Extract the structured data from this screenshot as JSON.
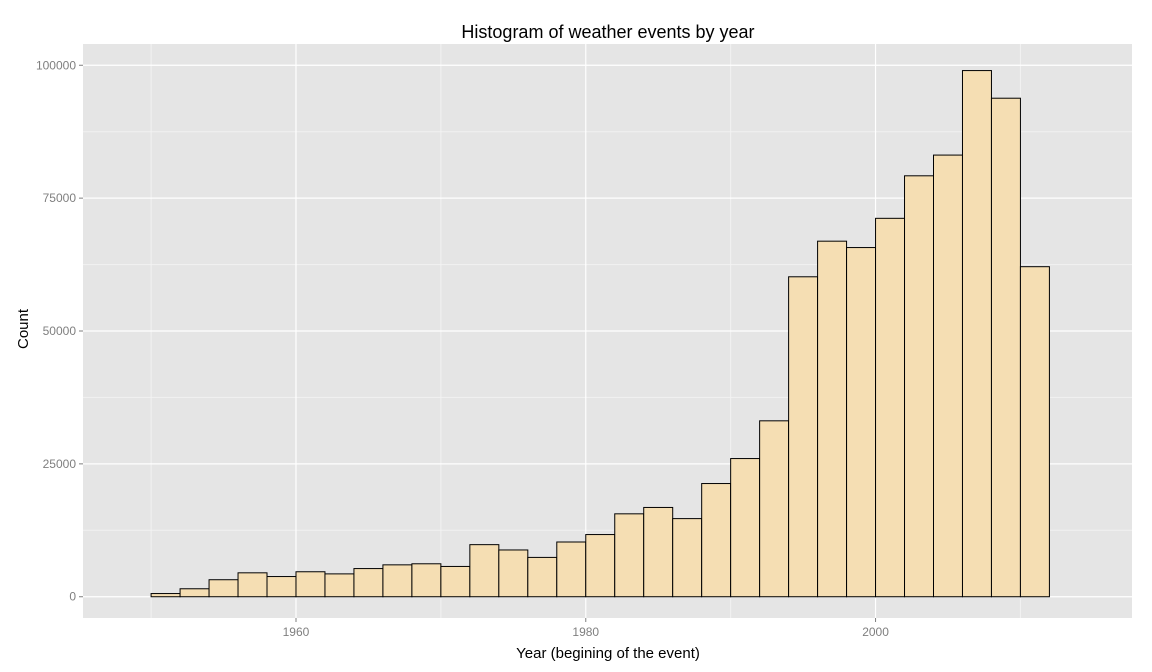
{
  "chart_data": {
    "type": "bar",
    "title": "Histogram of weather events by year",
    "xlabel": "Year (begining of the event)",
    "ylabel": "Count",
    "bin_width": 2,
    "x_bins": [
      1948,
      1950,
      1952,
      1954,
      1956,
      1958,
      1960,
      1962,
      1964,
      1966,
      1968,
      1970,
      1972,
      1974,
      1976,
      1978,
      1980,
      1982,
      1984,
      1986,
      1988,
      1990,
      1992,
      1994,
      1996,
      1998,
      2000,
      2002,
      2004,
      2006,
      2008,
      2010,
      2012,
      2014
    ],
    "values": [
      0,
      600,
      1500,
      3200,
      4500,
      3800,
      4700,
      4300,
      5300,
      6000,
      6200,
      5700,
      9800,
      8800,
      7400,
      10300,
      11700,
      15600,
      16800,
      14700,
      21300,
      26000,
      33100,
      60200,
      66900,
      65700,
      71200,
      79200,
      83100,
      99000,
      93800,
      62100,
      0,
      0
    ],
    "xlim": [
      1945.3,
      2017.7
    ],
    "ylim": [
      -4000,
      104000
    ],
    "x_ticks": [
      1960,
      1980,
      2000
    ],
    "x_tick_labels": [
      "1960",
      "1980",
      "2000"
    ],
    "y_ticks": [
      0,
      25000,
      50000,
      75000,
      100000
    ],
    "y_tick_labels": [
      "0",
      "25000",
      "50000",
      "75000",
      "100000"
    ],
    "grid": true,
    "colors": {
      "panel_background": "#e5e5e5",
      "grid_major": "#ffffff",
      "grid_minor": "#f2f2f2",
      "bar_fill": "#f5deb3",
      "bar_outline": "#000000"
    }
  }
}
